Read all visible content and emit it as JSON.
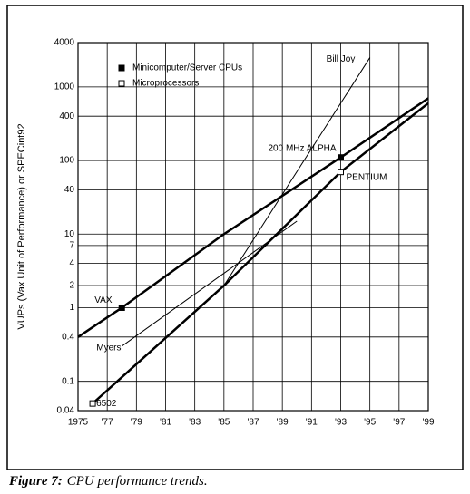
{
  "chart_data": {
    "type": "line",
    "y_label": "VUPs (Vax Unit of Performance) or SPECint92",
    "log_scale_y": true,
    "grid": true,
    "xlim": [
      1975,
      1999
    ],
    "xticks": [
      {
        "value": 1975,
        "label": "1975"
      },
      {
        "value": 1977,
        "label": "'77"
      },
      {
        "value": 1979,
        "label": "'79"
      },
      {
        "value": 1981,
        "label": "'81"
      },
      {
        "value": 1983,
        "label": "'83"
      },
      {
        "value": 1985,
        "label": "'85"
      },
      {
        "value": 1987,
        "label": "'87"
      },
      {
        "value": 1989,
        "label": "'89"
      },
      {
        "value": 1991,
        "label": "'91"
      },
      {
        "value": 1993,
        "label": "'93"
      },
      {
        "value": 1995,
        "label": "'95"
      },
      {
        "value": 1997,
        "label": "'97"
      },
      {
        "value": 1999,
        "label": "'99"
      }
    ],
    "ylim": [
      0.04,
      4000
    ],
    "yticks": [
      0.04,
      0.1,
      0.4,
      1,
      2,
      4,
      7,
      10,
      40,
      100,
      400,
      1000,
      4000
    ],
    "legend": "upper left",
    "series": [
      {
        "name": "Minicomputer/Server CPUs",
        "color": "#000000",
        "marker": "filled-square",
        "x": [
          1975,
          1978,
          1985,
          1993,
          1999
        ],
        "values": [
          0.4,
          1,
          10,
          110,
          700
        ],
        "point_labels": [
          null,
          "VAX",
          null,
          "200 MHz ALPHA",
          null
        ]
      },
      {
        "name": "Microprocessors",
        "color": "#000000",
        "marker": "open-square",
        "x": [
          1976,
          1985,
          1993,
          1999
        ],
        "values": [
          0.05,
          2,
          70,
          600
        ],
        "point_labels": [
          "6502",
          null,
          "PENTIUM",
          null
        ]
      }
    ],
    "trend_lines": [
      {
        "name": "Bill Joy",
        "color": "#000000",
        "x": [
          1985,
          1995
        ],
        "values": [
          2,
          2500
        ]
      },
      {
        "name": "Myers",
        "color": "#000000",
        "x": [
          1978,
          1990
        ],
        "values": [
          0.3,
          15
        ]
      }
    ],
    "caption": {
      "label": "Figure 7:",
      "text": "CPU performance trends."
    }
  }
}
